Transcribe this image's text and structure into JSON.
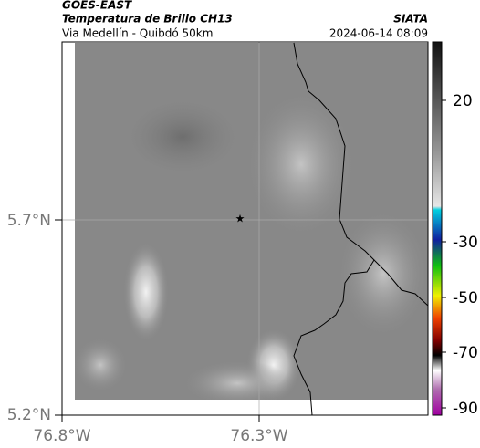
{
  "header": {
    "satellite": "GOES-EAST",
    "product": "Temperatura de Brillo CH13",
    "source": "SIATA",
    "region": "Via Medellín - Quibdó 50km",
    "timestamp": "2024-06-14 08:09"
  },
  "map": {
    "lat_labels": [
      "5.7°N",
      "5.2°N"
    ],
    "lon_labels": [
      "76.8°W",
      "76.3°W"
    ]
  },
  "colorbar": {
    "ticks": [
      "20",
      "-30",
      "-50",
      "-70",
      "-90"
    ]
  }
}
